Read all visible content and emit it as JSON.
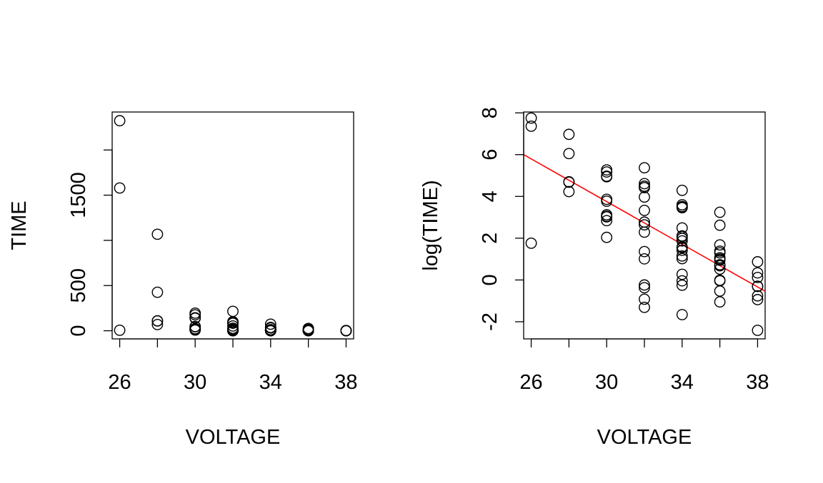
{
  "chart_data": [
    {
      "type": "scatter",
      "xlabel": "VOLTAGE",
      "ylabel": "TIME",
      "xlim": [
        25.6,
        38.4
      ],
      "ylim": [
        -90,
        2420
      ],
      "x_ticks": [
        26,
        30,
        34,
        38
      ],
      "x_tick_labels": [
        "26",
        "30",
        "34",
        "38"
      ],
      "x_minor_ticks": [
        28,
        32,
        36
      ],
      "y_ticks": [
        0,
        500,
        1000,
        1500,
        2000
      ],
      "y_tick_labels": [
        "0",
        "500",
        "",
        "1500",
        ""
      ],
      "grid": false,
      "points": [
        {
          "x": 26,
          "y": 5.8
        },
        {
          "x": 26,
          "y": 1579.5
        },
        {
          "x": 26,
          "y": 2323.7
        },
        {
          "x": 28,
          "y": 68.9
        },
        {
          "x": 28,
          "y": 108.3
        },
        {
          "x": 28,
          "y": 110.3
        },
        {
          "x": 28,
          "y": 426.1
        },
        {
          "x": 28,
          "y": 1067.6
        },
        {
          "x": 30,
          "y": 7.7
        },
        {
          "x": 30,
          "y": 17.1
        },
        {
          "x": 30,
          "y": 20.5
        },
        {
          "x": 30,
          "y": 21.0
        },
        {
          "x": 30,
          "y": 22.7
        },
        {
          "x": 30,
          "y": 43.4
        },
        {
          "x": 30,
          "y": 47.3
        },
        {
          "x": 30,
          "y": 139.1
        },
        {
          "x": 30,
          "y": 144.1
        },
        {
          "x": 30,
          "y": 175.9
        },
        {
          "x": 30,
          "y": 194.9
        },
        {
          "x": 32,
          "y": 0.27
        },
        {
          "x": 32,
          "y": 0.4
        },
        {
          "x": 32,
          "y": 0.69
        },
        {
          "x": 32,
          "y": 0.79
        },
        {
          "x": 32,
          "y": 2.75
        },
        {
          "x": 32,
          "y": 3.91
        },
        {
          "x": 32,
          "y": 9.88
        },
        {
          "x": 32,
          "y": 13.95
        },
        {
          "x": 32,
          "y": 15.93
        },
        {
          "x": 32,
          "y": 27.8
        },
        {
          "x": 32,
          "y": 53.24
        },
        {
          "x": 32,
          "y": 82.85
        },
        {
          "x": 32,
          "y": 89.29
        },
        {
          "x": 32,
          "y": 100.58
        },
        {
          "x": 32,
          "y": 215.1
        },
        {
          "x": 34,
          "y": 0.19
        },
        {
          "x": 34,
          "y": 0.78
        },
        {
          "x": 34,
          "y": 0.96
        },
        {
          "x": 34,
          "y": 1.31
        },
        {
          "x": 34,
          "y": 2.78
        },
        {
          "x": 34,
          "y": 3.16
        },
        {
          "x": 34,
          "y": 4.15
        },
        {
          "x": 34,
          "y": 4.67
        },
        {
          "x": 34,
          "y": 4.85
        },
        {
          "x": 34,
          "y": 6.5
        },
        {
          "x": 34,
          "y": 7.35
        },
        {
          "x": 34,
          "y": 8.01
        },
        {
          "x": 34,
          "y": 8.27
        },
        {
          "x": 34,
          "y": 12.06
        },
        {
          "x": 34,
          "y": 31.75
        },
        {
          "x": 34,
          "y": 32.52
        },
        {
          "x": 34,
          "y": 33.91
        },
        {
          "x": 34,
          "y": 36.71
        },
        {
          "x": 34,
          "y": 72.89
        },
        {
          "x": 36,
          "y": 0.35
        },
        {
          "x": 36,
          "y": 0.59
        },
        {
          "x": 36,
          "y": 0.96
        },
        {
          "x": 36,
          "y": 0.99
        },
        {
          "x": 36,
          "y": 1.69
        },
        {
          "x": 36,
          "y": 1.97
        },
        {
          "x": 36,
          "y": 2.07
        },
        {
          "x": 36,
          "y": 2.58
        },
        {
          "x": 36,
          "y": 2.71
        },
        {
          "x": 36,
          "y": 2.9
        },
        {
          "x": 36,
          "y": 3.67
        },
        {
          "x": 36,
          "y": 3.99
        },
        {
          "x": 36,
          "y": 5.35
        },
        {
          "x": 36,
          "y": 13.77
        },
        {
          "x": 36,
          "y": 25.5
        },
        {
          "x": 38,
          "y": 0.09
        },
        {
          "x": 38,
          "y": 0.39
        },
        {
          "x": 38,
          "y": 0.47
        },
        {
          "x": 38,
          "y": 0.73
        },
        {
          "x": 38,
          "y": 0.74
        },
        {
          "x": 38,
          "y": 1.13
        },
        {
          "x": 38,
          "y": 1.4
        },
        {
          "x": 38,
          "y": 2.38
        }
      ]
    },
    {
      "type": "scatter",
      "xlabel": "VOLTAGE",
      "ylabel": "log(TIME)",
      "xlim": [
        25.6,
        38.4
      ],
      "ylim": [
        -2.82,
        8.04
      ],
      "x_ticks": [
        26,
        30,
        34,
        38
      ],
      "x_tick_labels": [
        "26",
        "30",
        "34",
        "38"
      ],
      "x_minor_ticks": [
        28,
        32,
        36
      ],
      "y_ticks": [
        -2,
        0,
        2,
        4,
        6,
        8
      ],
      "y_tick_labels": [
        "-2",
        "0",
        "2",
        "4",
        "6",
        "8"
      ],
      "grid": false,
      "regression_line": {
        "color": "#ff0000",
        "x": [
          25.6,
          38.4
        ],
        "y": [
          6.0,
          -0.54
        ]
      },
      "points": [
        {
          "x": 26,
          "y": 1.76
        },
        {
          "x": 26,
          "y": 7.36
        },
        {
          "x": 26,
          "y": 7.75
        },
        {
          "x": 28,
          "y": 4.23
        },
        {
          "x": 28,
          "y": 4.68
        },
        {
          "x": 28,
          "y": 4.7
        },
        {
          "x": 28,
          "y": 6.05
        },
        {
          "x": 28,
          "y": 6.97
        },
        {
          "x": 30,
          "y": 2.04
        },
        {
          "x": 30,
          "y": 2.84
        },
        {
          "x": 30,
          "y": 3.02
        },
        {
          "x": 30,
          "y": 3.05
        },
        {
          "x": 30,
          "y": 3.12
        },
        {
          "x": 30,
          "y": 3.77
        },
        {
          "x": 30,
          "y": 3.86
        },
        {
          "x": 30,
          "y": 4.94
        },
        {
          "x": 30,
          "y": 4.97
        },
        {
          "x": 30,
          "y": 5.17
        },
        {
          "x": 30,
          "y": 5.27
        },
        {
          "x": 32,
          "y": -1.31
        },
        {
          "x": 32,
          "y": -0.92
        },
        {
          "x": 32,
          "y": -0.37
        },
        {
          "x": 32,
          "y": -0.24
        },
        {
          "x": 32,
          "y": 1.01
        },
        {
          "x": 32,
          "y": 1.36
        },
        {
          "x": 32,
          "y": 2.29
        },
        {
          "x": 32,
          "y": 2.64
        },
        {
          "x": 32,
          "y": 2.77
        },
        {
          "x": 32,
          "y": 3.33
        },
        {
          "x": 32,
          "y": 3.97
        },
        {
          "x": 32,
          "y": 4.42
        },
        {
          "x": 32,
          "y": 4.49
        },
        {
          "x": 32,
          "y": 4.61
        },
        {
          "x": 32,
          "y": 5.37
        },
        {
          "x": 34,
          "y": -1.66
        },
        {
          "x": 34,
          "y": -0.25
        },
        {
          "x": 34,
          "y": -0.04
        },
        {
          "x": 34,
          "y": 0.27
        },
        {
          "x": 34,
          "y": 1.02
        },
        {
          "x": 34,
          "y": 1.15
        },
        {
          "x": 34,
          "y": 1.42
        },
        {
          "x": 34,
          "y": 1.54
        },
        {
          "x": 34,
          "y": 1.58
        },
        {
          "x": 34,
          "y": 1.87
        },
        {
          "x": 34,
          "y": 1.99
        },
        {
          "x": 34,
          "y": 2.08
        },
        {
          "x": 34,
          "y": 2.11
        },
        {
          "x": 34,
          "y": 2.49
        },
        {
          "x": 34,
          "y": 3.46
        },
        {
          "x": 34,
          "y": 3.48
        },
        {
          "x": 34,
          "y": 3.52
        },
        {
          "x": 34,
          "y": 3.6
        },
        {
          "x": 34,
          "y": 4.29
        },
        {
          "x": 36,
          "y": -1.05
        },
        {
          "x": 36,
          "y": -0.53
        },
        {
          "x": 36,
          "y": -0.04
        },
        {
          "x": 36,
          "y": -0.01
        },
        {
          "x": 36,
          "y": 0.52
        },
        {
          "x": 36,
          "y": 0.68
        },
        {
          "x": 36,
          "y": 0.73
        },
        {
          "x": 36,
          "y": 0.95
        },
        {
          "x": 36,
          "y": 1.0
        },
        {
          "x": 36,
          "y": 1.06
        },
        {
          "x": 36,
          "y": 1.3
        },
        {
          "x": 36,
          "y": 1.38
        },
        {
          "x": 36,
          "y": 1.68
        },
        {
          "x": 36,
          "y": 2.62
        },
        {
          "x": 36,
          "y": 3.24
        },
        {
          "x": 38,
          "y": -2.41
        },
        {
          "x": 38,
          "y": -0.94
        },
        {
          "x": 38,
          "y": -0.76
        },
        {
          "x": 38,
          "y": -0.31
        },
        {
          "x": 38,
          "y": -0.3
        },
        {
          "x": 38,
          "y": 0.12
        },
        {
          "x": 38,
          "y": 0.34
        },
        {
          "x": 38,
          "y": 0.87
        }
      ]
    }
  ]
}
